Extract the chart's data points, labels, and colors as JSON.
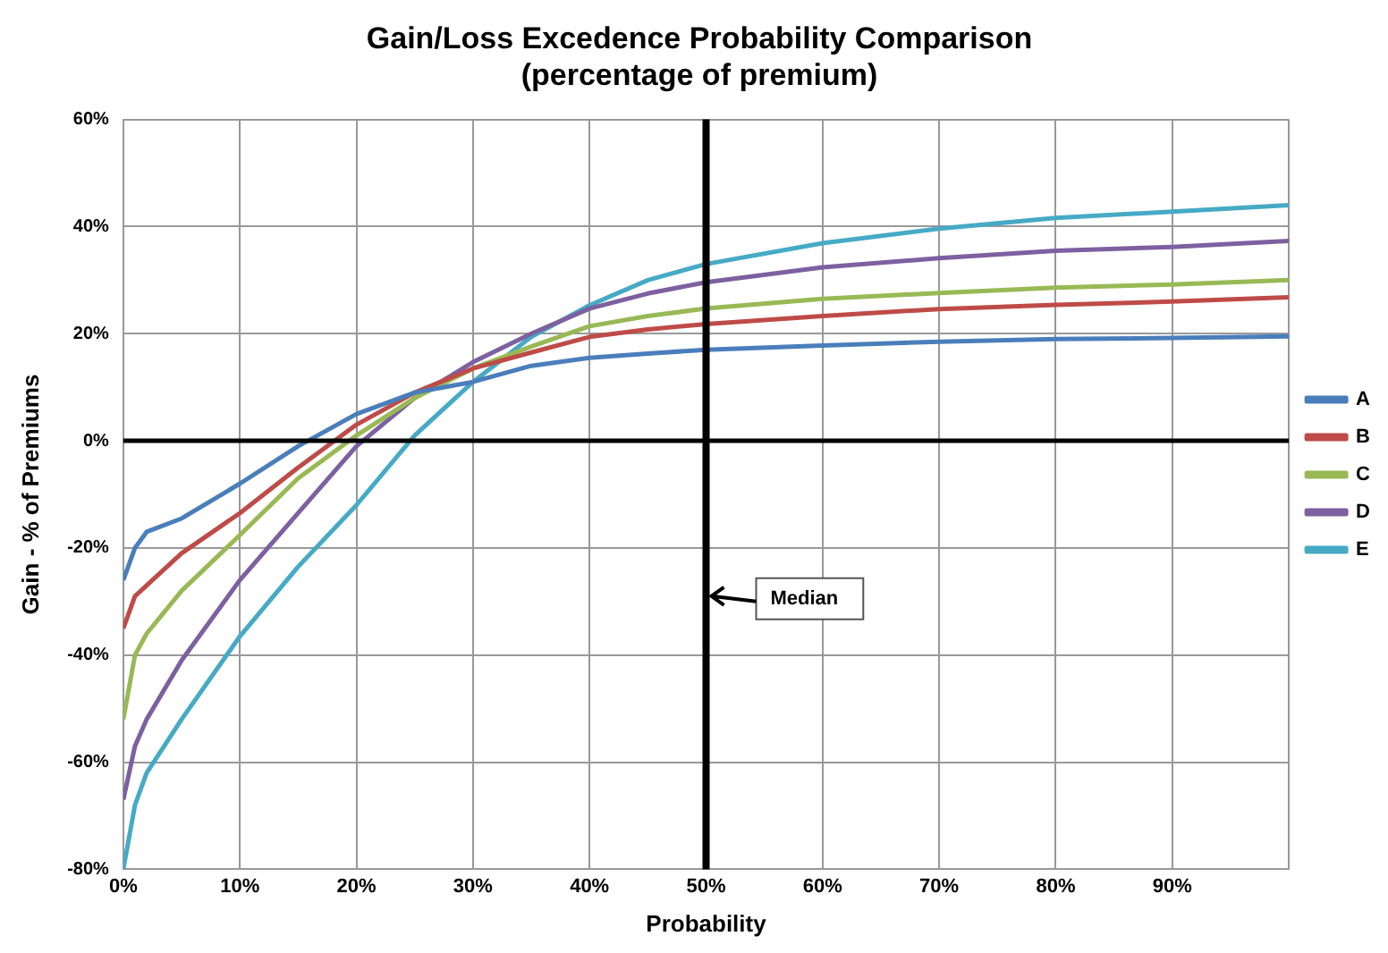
{
  "chart_data": {
    "type": "line",
    "title": "Gain/Loss Excedence Probability Comparison",
    "subtitle": "(percentage of premium)",
    "xlabel": "Probability",
    "ylabel": "Gain - % of Premiums",
    "x": [
      0,
      1,
      2,
      5,
      10,
      15,
      20,
      25,
      30,
      35,
      40,
      45,
      50,
      60,
      70,
      80,
      90,
      100
    ],
    "series": [
      {
        "name": "A",
        "color": "#4a7ebb",
        "values": [
          -26,
          -20,
          -17,
          -14.5,
          -8,
          -1,
          5,
          9,
          11,
          14,
          15.5,
          16.3,
          17,
          17.8,
          18.5,
          19,
          19.2,
          19.5
        ]
      },
      {
        "name": "B",
        "color": "#be4b48",
        "values": [
          -35,
          -29,
          -27,
          -21,
          -13.5,
          -5,
          3,
          9,
          13.5,
          16.5,
          19.4,
          20.8,
          21.8,
          23.3,
          24.6,
          25.4,
          26,
          26.8
        ]
      },
      {
        "name": "C",
        "color": "#98b954",
        "values": [
          -52,
          -40,
          -36,
          -28,
          -17.6,
          -7,
          1,
          8,
          13.5,
          17.6,
          21.4,
          23.3,
          24.7,
          26.5,
          27.6,
          28.6,
          29.2,
          30
        ]
      },
      {
        "name": "D",
        "color": "#7d60a0",
        "values": [
          -67,
          -57,
          -52,
          -41,
          -26,
          -13.5,
          -1,
          8,
          14.7,
          20,
          24.7,
          27.5,
          29.6,
          32.4,
          34.1,
          35.5,
          36.2,
          37.3
        ]
      },
      {
        "name": "E",
        "color": "#46aac5",
        "values": [
          -80,
          -68,
          -62,
          -52,
          -36.5,
          -23.5,
          -12,
          1,
          11,
          19.4,
          25.3,
          30,
          33,
          36.9,
          39.6,
          41.6,
          42.8,
          44
        ]
      }
    ],
    "xlim": [
      0,
      100
    ],
    "xticks": [
      {
        "value": 0,
        "label": "0%"
      },
      {
        "value": 10,
        "label": "10%"
      },
      {
        "value": 20,
        "label": "20%"
      },
      {
        "value": 30,
        "label": "30%"
      },
      {
        "value": 40,
        "label": "40%"
      },
      {
        "value": 50,
        "label": "50%"
      },
      {
        "value": 60,
        "label": "60%"
      },
      {
        "value": 70,
        "label": "70%"
      },
      {
        "value": 80,
        "label": "80%"
      },
      {
        "value": 90,
        "label": "90%"
      },
      {
        "value": 100,
        "label": null
      }
    ],
    "ylim": [
      -80,
      60
    ],
    "yticks": [
      {
        "value": -80,
        "label": "-80%"
      },
      {
        "value": -60,
        "label": "-60%"
      },
      {
        "value": -40,
        "label": "-40%"
      },
      {
        "value": -20,
        "label": "-20%"
      },
      {
        "value": 0,
        "label": "0%"
      },
      {
        "value": 20,
        "label": "20%"
      },
      {
        "value": 40,
        "label": "40%"
      },
      {
        "value": 60,
        "label": "60%"
      }
    ],
    "ref_lines": [
      {
        "axis": "x",
        "value": 50,
        "color": "#000000"
      },
      {
        "axis": "y",
        "value": 0,
        "color": "#000000"
      }
    ],
    "annotations": [
      {
        "text": "Median",
        "x": 50,
        "y": -29
      }
    ],
    "grid": true,
    "legend": "right",
    "marker": "none",
    "line_style": "solid"
  }
}
